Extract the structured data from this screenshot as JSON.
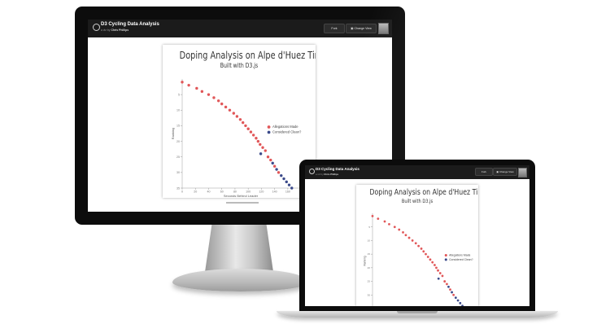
{
  "app": {
    "title": "D3 Cycling Data Analysis",
    "byline_prefix": "a viz by",
    "author": "Chris Phillips",
    "fork_label": "Fork",
    "change_view_label": "Change View"
  },
  "chart": {
    "title": "Doping Analysis on Alpe d'Huez Times",
    "subtitle": "Built with D3.js",
    "x_axis_label": "Seconds Behind Leader",
    "y_axis_label": "Ranking",
    "legend": [
      {
        "label": "Allegations Made",
        "color": "#e15759"
      },
      {
        "label": "Considered Clean?",
        "color": "#3b4a8a"
      }
    ]
  },
  "chart_data": {
    "type": "scatter",
    "xlabel": "Seconds Behind Leader",
    "ylabel": "Ranking",
    "ylim": [
      0,
      35
    ],
    "legend_position": "right-middle",
    "grid": false,
    "series": [
      {
        "name": "Allegations Made",
        "color": "#e15759",
        "points": [
          [
            0,
            1
          ],
          [
            10,
            2
          ],
          [
            22,
            3
          ],
          [
            30,
            4
          ],
          [
            40,
            5
          ],
          [
            48,
            6
          ],
          [
            55,
            7
          ],
          [
            60,
            8
          ],
          [
            66,
            9
          ],
          [
            72,
            10
          ],
          [
            78,
            11
          ],
          [
            83,
            12
          ],
          [
            88,
            13
          ],
          [
            92,
            14
          ],
          [
            96,
            15
          ],
          [
            100,
            16
          ],
          [
            104,
            17
          ],
          [
            108,
            18
          ],
          [
            112,
            19
          ],
          [
            115,
            20
          ],
          [
            118,
            21
          ],
          [
            122,
            22
          ],
          [
            126,
            23
          ],
          [
            130,
            25
          ],
          [
            134,
            26
          ],
          [
            140,
            28
          ],
          [
            146,
            30
          ]
        ]
      },
      {
        "name": "Considered Clean?",
        "color": "#3b4a8a",
        "points": [
          [
            119,
            24
          ],
          [
            137,
            27
          ],
          [
            143,
            29
          ],
          [
            150,
            31
          ],
          [
            154,
            32
          ],
          [
            158,
            33
          ],
          [
            162,
            34
          ],
          [
            166,
            35
          ]
        ]
      }
    ]
  }
}
